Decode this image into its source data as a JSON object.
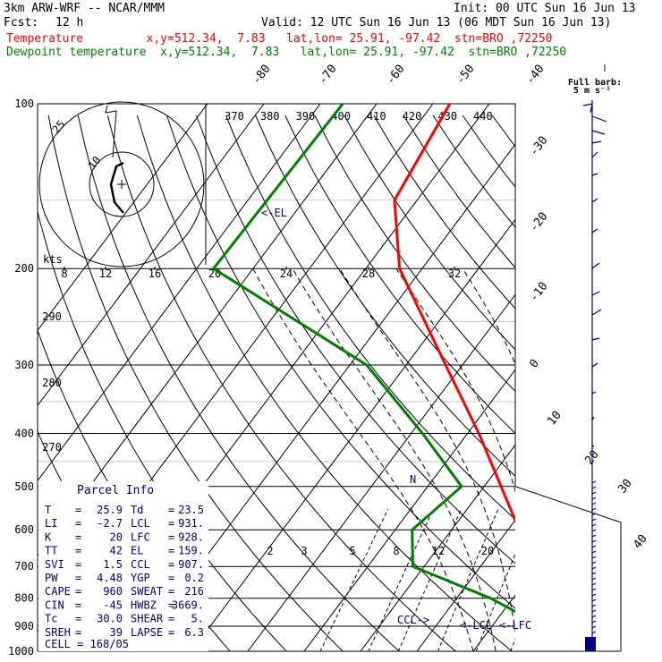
{
  "header": {
    "model": "3km ARW-WRF -- NCAR/MMM",
    "init": "Init: 00 UTC Sun 16 Jun 13",
    "fcst_label": "Fcst:",
    "fcst_value": "12 h",
    "valid": "Valid: 12 UTC Sun 16 Jun 13 (06 MDT Sun 16 Jun 13)",
    "temp_line": "Temperature         x,y=512.34,  7.83   lat,lon= 25.91, -97.42  stn=BRO ,72250",
    "dew_line": "Dewpoint temperature  x,y=512.34,  7.83   lat,lon= 25.91, -97.42  stn=BRO ,72250"
  },
  "colors": {
    "temperature": "#ff0000",
    "dewpoint": "#008000",
    "annot": "#000080",
    "header_temp": "#ff0000",
    "header_dew": "#008000"
  },
  "barb_legend": {
    "title": "Full barb:",
    "value": "5 m s⁻¹"
  },
  "chart_data": {
    "type": "line",
    "title": "",
    "pressure_levels": [
      100,
      200,
      300,
      400,
      500,
      600,
      700,
      800,
      900,
      1000
    ],
    "isotherm_labels": [
      "-80",
      "-70",
      "-60",
      "-50",
      "-40",
      "-30",
      "-20",
      "-10",
      "0",
      "10",
      "20",
      "30",
      "40"
    ],
    "theta_labels": [
      "370",
      "380",
      "390",
      "400",
      "410",
      "420",
      "430",
      "440"
    ],
    "theta_dry_labels": [
      "290",
      "280",
      "270"
    ],
    "mixing_ratio_labels": [
      "2",
      "3",
      "5",
      "8",
      "12",
      "20"
    ],
    "hodo_ring_labels": [
      "25",
      "10"
    ],
    "hodo_speed_axis": {
      "label": "kts",
      "ticks": [
        "8",
        "12",
        "16",
        "20",
        "24",
        "28",
        "32"
      ]
    },
    "markers": {
      "el": "EL",
      "ccl": "CCL",
      "lcl": "LCL",
      "lfc": "LFC"
    },
    "series": [
      {
        "name": "Temperature",
        "points": [
          [
            100,
            -67
          ],
          [
            150,
            -64
          ],
          [
            200,
            -54
          ],
          [
            300,
            -33
          ],
          [
            400,
            -18
          ],
          [
            500,
            -7
          ],
          [
            600,
            2
          ],
          [
            700,
            8
          ],
          [
            800,
            13.5
          ],
          [
            900,
            19.5
          ],
          [
            950,
            23
          ],
          [
            1000,
            25.9
          ]
        ]
      },
      {
        "name": "Dewpoint temperature",
        "points": [
          [
            100,
            -86
          ],
          [
            200,
            -87
          ],
          [
            300,
            -47
          ],
          [
            400,
            -28
          ],
          [
            500,
            -14
          ],
          [
            600,
            -17
          ],
          [
            700,
            -12
          ],
          [
            800,
            6
          ],
          [
            900,
            19
          ],
          [
            950,
            21
          ],
          [
            1000,
            23.5
          ]
        ]
      }
    ]
  },
  "parcel": {
    "title": "Parcel Info",
    "rows": [
      [
        "T",
        "25.9",
        "Td",
        "23.5"
      ],
      [
        "LI",
        "-2.7",
        "LCL",
        "931."
      ],
      [
        "K",
        "20",
        "LFC",
        "928."
      ],
      [
        "TT",
        "42",
        "EL",
        "159."
      ],
      [
        "SVI",
        "1.5",
        "CCL",
        "907."
      ],
      [
        "PW",
        "4.48",
        "YGP",
        "0.2"
      ],
      [
        "CAPE",
        "960",
        "SWEAT",
        "216"
      ],
      [
        "CIN",
        "-45",
        "HWBZ",
        "3669."
      ],
      [
        "Tc",
        "30.0",
        "SHEAR",
        "5."
      ],
      [
        "SREH",
        "39",
        "LAPSE",
        "6.3"
      ]
    ],
    "cell_label": "CELL",
    "cell_value": "168/05"
  }
}
